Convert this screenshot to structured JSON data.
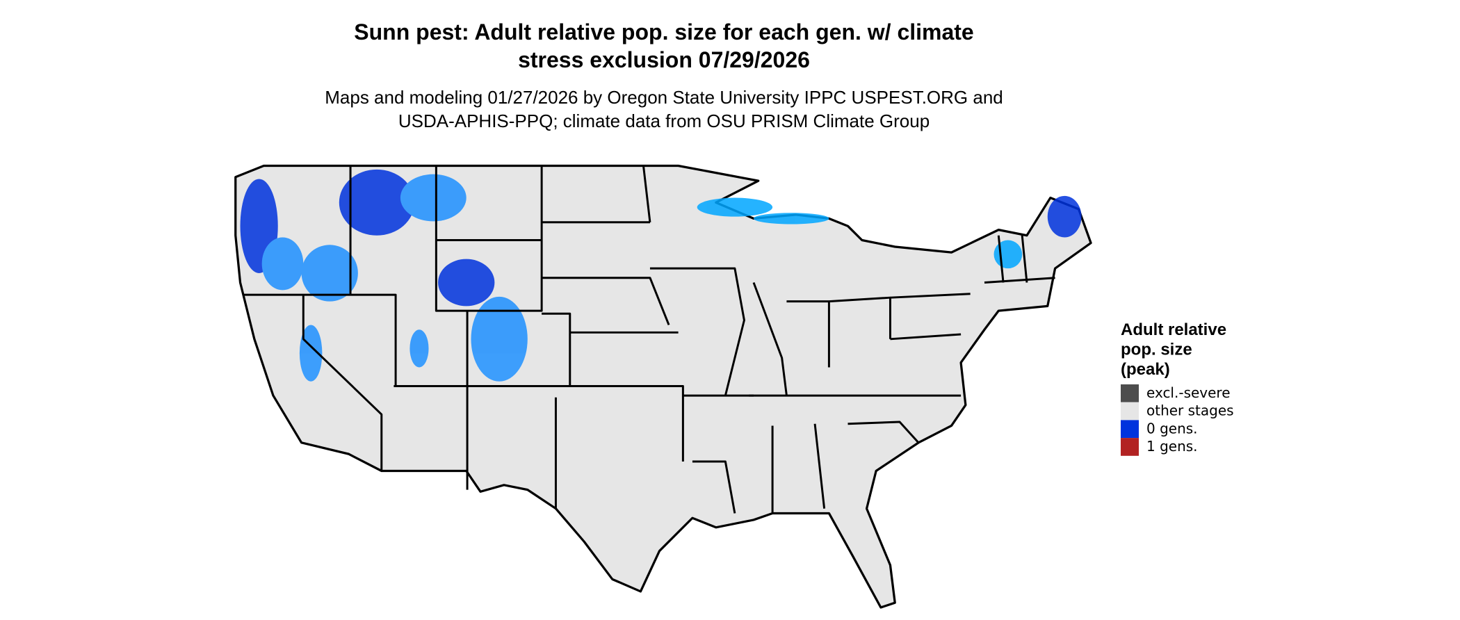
{
  "title": [
    "Sunn pest: Adult relative pop. size for each gen. w/ climate",
    "stress exclusion 07/29/2026"
  ],
  "subtitle": [
    "Maps and modeling 01/27/2026 by Oregon State University IPPC USPEST.ORG and",
    "USDA-APHIS-PPQ; climate data from OSU PRISM Climate Group"
  ],
  "legend": {
    "title": [
      "Adult relative",
      "pop. size",
      "(peak)"
    ],
    "items": [
      {
        "label": "excl.-severe",
        "color": "#4d4d4d"
      },
      {
        "label": "other stages",
        "color": "#e6e6e6"
      },
      {
        "label": "0 gens.",
        "color": "#0033dd"
      },
      {
        "label": "1 gens.",
        "color": "#b22222"
      }
    ]
  }
}
